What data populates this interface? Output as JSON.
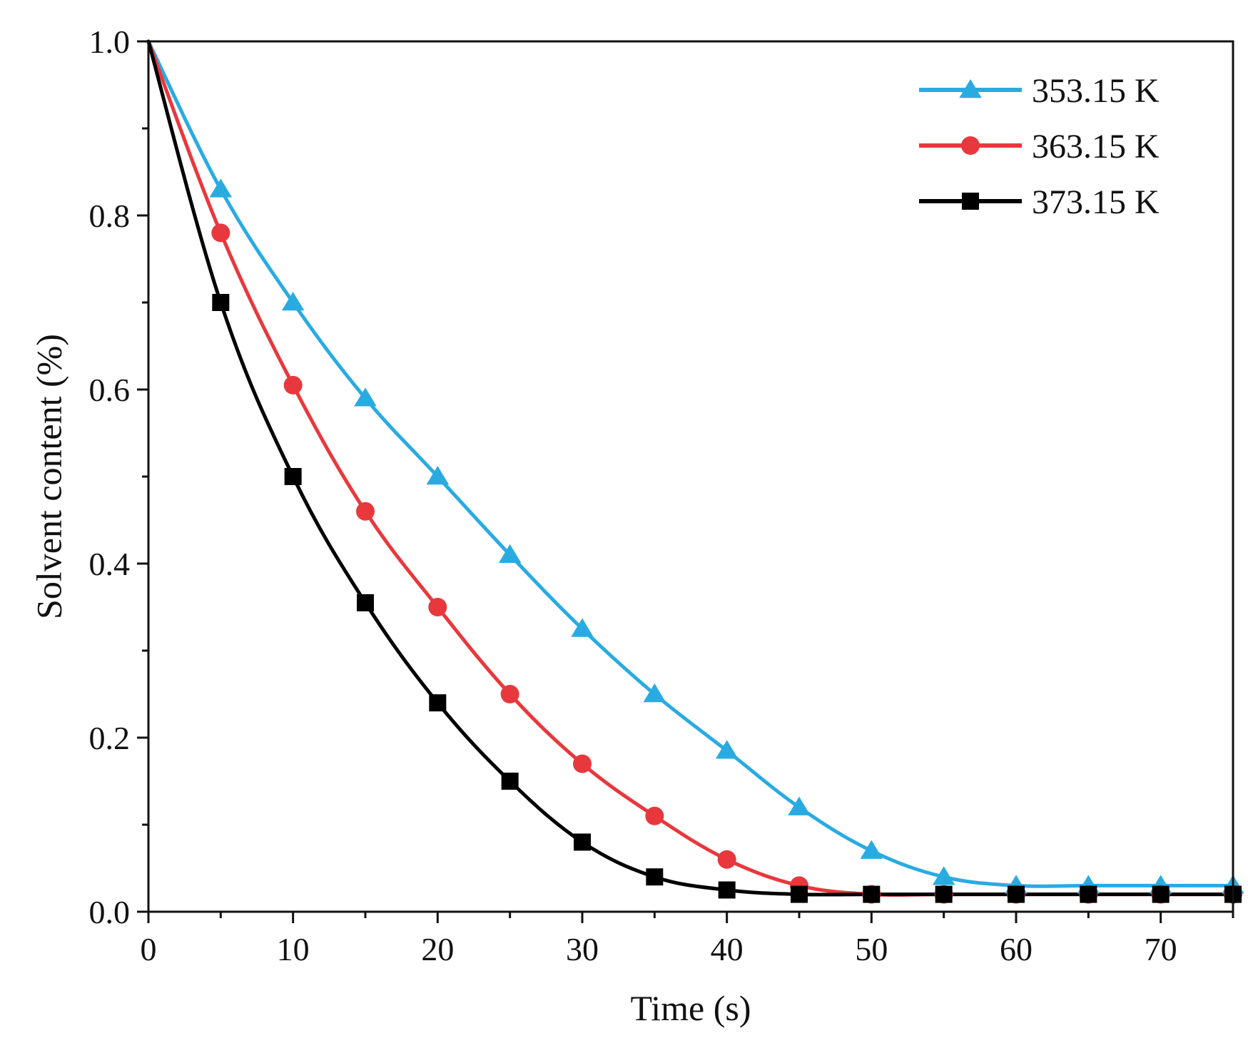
{
  "chart_data": {
    "type": "line",
    "title": "",
    "xlabel": "Time (s)",
    "ylabel": "Solvent content (%)",
    "xlim": [
      0,
      75
    ],
    "ylim": [
      0.0,
      1.0
    ],
    "x_ticks": [
      0,
      10,
      20,
      30,
      40,
      50,
      60,
      70
    ],
    "x_tick_labels": [
      "0",
      "10",
      "20",
      "30",
      "40",
      "50",
      "60",
      "70"
    ],
    "y_ticks": [
      0.0,
      0.2,
      0.4,
      0.6,
      0.8,
      1.0
    ],
    "y_tick_labels": [
      "0.0",
      "0.2",
      "0.4",
      "0.6",
      "0.8",
      "1.0"
    ],
    "grid": false,
    "legend_position": "top-right",
    "series": [
      {
        "name": "353.15 K",
        "color": "#29abe2",
        "marker": "triangle",
        "x": [
          0,
          5,
          10,
          15,
          20,
          25,
          30,
          35,
          40,
          45,
          50,
          55,
          60,
          65,
          70,
          75
        ],
        "y": [
          1.0,
          0.83,
          0.7,
          0.59,
          0.5,
          0.41,
          0.325,
          0.25,
          0.185,
          0.12,
          0.07,
          0.04,
          0.03,
          0.03,
          0.03,
          0.03
        ]
      },
      {
        "name": "363.15 K",
        "color": "#e8383d",
        "marker": "circle",
        "x": [
          0,
          5,
          10,
          15,
          20,
          25,
          30,
          35,
          40,
          45,
          50,
          55,
          60,
          65,
          70,
          75
        ],
        "y": [
          1.0,
          0.78,
          0.605,
          0.46,
          0.35,
          0.25,
          0.17,
          0.11,
          0.06,
          0.03,
          0.02,
          0.02,
          0.02,
          0.02,
          0.02,
          0.02
        ]
      },
      {
        "name": "373.15 K",
        "color": "#000000",
        "marker": "square",
        "x": [
          0,
          5,
          10,
          15,
          20,
          25,
          30,
          35,
          40,
          45,
          50,
          55,
          60,
          65,
          70,
          75
        ],
        "y": [
          1.0,
          0.7,
          0.5,
          0.355,
          0.24,
          0.15,
          0.08,
          0.04,
          0.025,
          0.02,
          0.02,
          0.02,
          0.02,
          0.02,
          0.02,
          0.02
        ]
      }
    ]
  }
}
